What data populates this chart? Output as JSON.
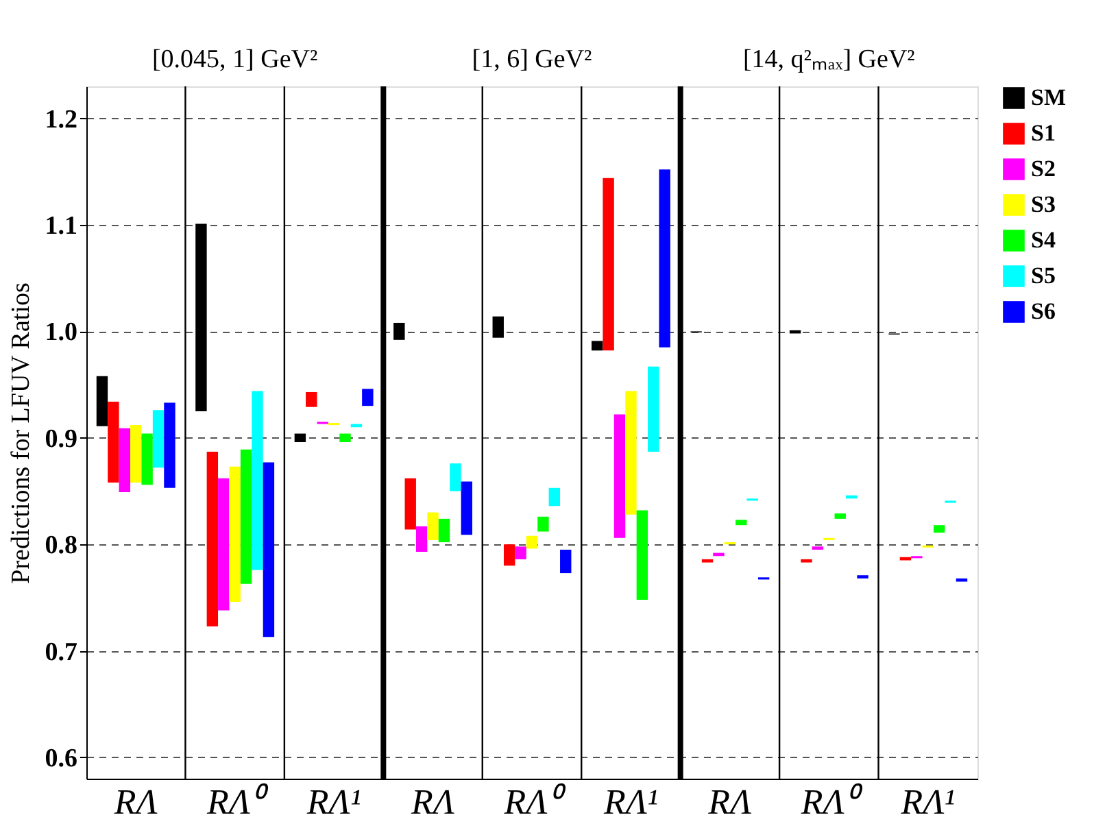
{
  "chart_data": {
    "type": "bar",
    "ylabel": "Predictions for LFUV Ratios",
    "categories": [
      "RΛ",
      "RΛ⁰",
      "RΛ¹",
      "RΛ",
      "RΛ⁰",
      "RΛ¹",
      "RΛ",
      "RΛ⁰",
      "RΛ¹"
    ],
    "annotations": [
      "[0.045, 1] GeV²",
      "[1, 6] GeV²",
      "[14, q²ₘₐₓ] GeV²"
    ],
    "ylim": [
      0.58,
      1.23
    ],
    "yticks": [
      0.6,
      0.7,
      0.8,
      0.9,
      {
        "value": 1.0,
        "label": "1.0"
      },
      1.1,
      1.2
    ],
    "grid": "y",
    "legend": "right",
    "series": [
      {
        "name": "SM",
        "color": "#000000",
        "base": [
          0.911,
          0.925,
          0.896,
          0.992,
          0.994,
          0.982,
          0.999,
          0.998,
          0.997
        ],
        "values": [
          0.047,
          0.176,
          0.008,
          0.016,
          0.02,
          0.009,
          0.001,
          0.003,
          0.001
        ]
      },
      {
        "name": "S1",
        "color": "#ff0000",
        "base": [
          0.858,
          0.723,
          0.929,
          0.814,
          0.78,
          0.982,
          0.783,
          0.783,
          0.785
        ],
        "values": [
          0.076,
          0.164,
          0.014,
          0.048,
          0.02,
          0.162,
          0.003,
          0.003,
          0.003
        ]
      },
      {
        "name": "S2",
        "color": "#ff00ff",
        "base": [
          0.849,
          0.738,
          0.913,
          0.793,
          0.786,
          0.806,
          0.789,
          0.795,
          0.787
        ],
        "values": [
          0.06,
          0.124,
          0.002,
          0.024,
          0.012,
          0.116,
          0.003,
          0.003,
          0.002
        ]
      },
      {
        "name": "S3",
        "color": "#ffff00",
        "base": [
          0.858,
          0.746,
          0.912,
          0.804,
          0.796,
          0.828,
          0.8,
          0.804,
          0.797
        ],
        "values": [
          0.054,
          0.127,
          0.002,
          0.026,
          0.012,
          0.116,
          0.002,
          0.002,
          0.002
        ]
      },
      {
        "name": "S4",
        "color": "#00ff00",
        "base": [
          0.856,
          0.763,
          0.896,
          0.802,
          0.812,
          0.748,
          0.818,
          0.824,
          0.811
        ],
        "values": [
          0.048,
          0.126,
          0.008,
          0.022,
          0.014,
          0.084,
          0.005,
          0.005,
          0.007
        ]
      },
      {
        "name": "S5",
        "color": "#00ffff",
        "base": [
          0.872,
          0.776,
          0.91,
          0.85,
          0.836,
          0.887,
          0.841,
          0.843,
          0.839
        ],
        "values": [
          0.054,
          0.168,
          0.003,
          0.026,
          0.017,
          0.08,
          0.002,
          0.003,
          0.002
        ]
      },
      {
        "name": "S6",
        "color": "#0000ff",
        "base": [
          0.853,
          0.713,
          0.93,
          0.809,
          0.773,
          0.985,
          0.767,
          0.768,
          0.765
        ],
        "values": [
          0.08,
          0.164,
          0.016,
          0.05,
          0.022,
          0.167,
          0.002,
          0.003,
          0.003
        ]
      }
    ]
  }
}
